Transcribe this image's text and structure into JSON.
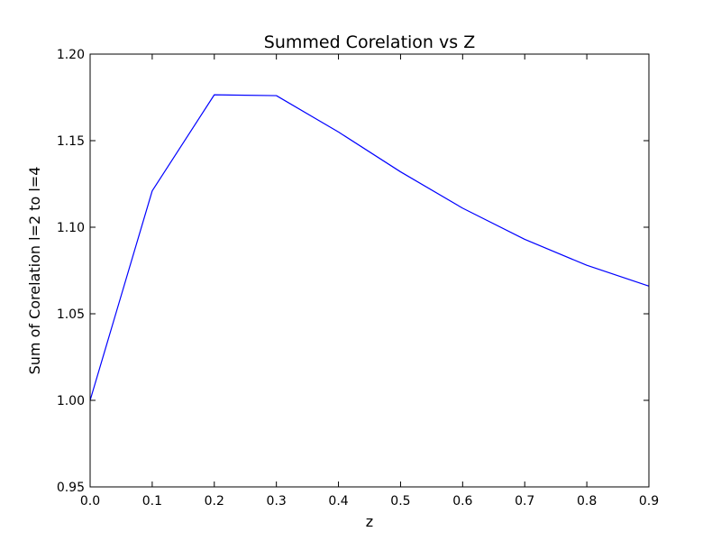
{
  "chart_data": {
    "type": "line",
    "title": "Summed Corelation vs Z",
    "xlabel": "z",
    "ylabel": "Sum of Corelation l=2 to l=4",
    "xlim": [
      0.0,
      0.9
    ],
    "ylim": [
      0.95,
      1.2
    ],
    "xticks": [
      0.0,
      0.1,
      0.2,
      0.3,
      0.4,
      0.5,
      0.6,
      0.7,
      0.8,
      0.9
    ],
    "xtick_labels": [
      "0.0",
      "0.1",
      "0.2",
      "0.3",
      "0.4",
      "0.5",
      "0.6",
      "0.7",
      "0.8",
      "0.9"
    ],
    "yticks": [
      0.95,
      1.0,
      1.05,
      1.1,
      1.15,
      1.2
    ],
    "ytick_labels": [
      "0.95",
      "1.00",
      "1.05",
      "1.10",
      "1.15",
      "1.20"
    ],
    "grid": false,
    "series": [
      {
        "color": "#0000ff",
        "x": [
          0.0,
          0.1,
          0.2,
          0.3,
          0.4,
          0.5,
          0.6,
          0.7,
          0.8,
          0.9
        ],
        "y": [
          1.0,
          1.121,
          1.1765,
          1.176,
          1.155,
          1.132,
          1.111,
          1.093,
          1.078,
          1.066
        ]
      }
    ]
  }
}
